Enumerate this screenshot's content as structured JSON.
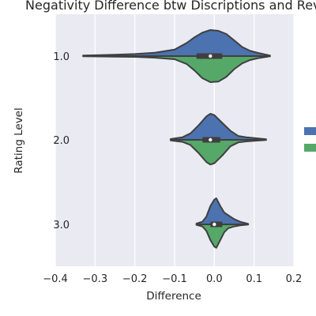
{
  "chart_data": {
    "type": "violin",
    "title": "Negativity Difference btw Discriptions and Revi",
    "xlabel": "Difference",
    "ylabel": "Rating Level",
    "xlim": [
      -0.4,
      0.2
    ],
    "xticks": [
      -0.4,
      -0.3,
      -0.2,
      -0.1,
      0.0,
      0.1,
      0.2
    ],
    "xtick_labels": [
      "−0.4",
      "−0.3",
      "−0.2",
      "−0.1",
      "0.0",
      "0.1",
      "0.2"
    ],
    "categories": [
      "1.0",
      "2.0",
      "3.0"
    ],
    "grid": true,
    "legend_placement": "right (partially cut off)",
    "split": true,
    "colors": {
      "background": "#eaeaf2",
      "grid": "#ffffff",
      "top_half": "#4c72b0",
      "bottom_half": "#55a868",
      "outline": "#3f3f3f"
    },
    "violins": [
      {
        "category": "1.0",
        "extent": [
          -0.33,
          0.14
        ],
        "top_density": [
          [
            -0.33,
            0.02
          ],
          [
            -0.25,
            0.05
          ],
          [
            -0.2,
            0.08
          ],
          [
            -0.15,
            0.13
          ],
          [
            -0.1,
            0.25
          ],
          [
            -0.07,
            0.5
          ],
          [
            -0.05,
            0.72
          ],
          [
            -0.03,
            0.9
          ],
          [
            -0.01,
            1.0
          ],
          [
            0.01,
            0.97
          ],
          [
            0.03,
            0.85
          ],
          [
            0.05,
            0.6
          ],
          [
            0.07,
            0.35
          ],
          [
            0.09,
            0.2
          ],
          [
            0.11,
            0.12
          ],
          [
            0.14,
            0.02
          ]
        ],
        "bottom_density": [
          [
            -0.33,
            0.01
          ],
          [
            -0.25,
            0.02
          ],
          [
            -0.2,
            0.03
          ],
          [
            -0.15,
            0.06
          ],
          [
            -0.1,
            0.12
          ],
          [
            -0.07,
            0.3
          ],
          [
            -0.05,
            0.55
          ],
          [
            -0.03,
            0.85
          ],
          [
            -0.01,
            1.0
          ],
          [
            0.01,
            0.98
          ],
          [
            0.03,
            0.8
          ],
          [
            0.05,
            0.5
          ],
          [
            0.07,
            0.28
          ],
          [
            0.09,
            0.15
          ],
          [
            0.11,
            0.08
          ],
          [
            0.14,
            0.01
          ]
        ],
        "median": -0.01,
        "quartiles": [
          -0.045,
          0.02
        ]
      },
      {
        "category": "2.0",
        "extent": [
          -0.11,
          0.13
        ],
        "top_density": [
          [
            -0.11,
            0.03
          ],
          [
            -0.08,
            0.1
          ],
          [
            -0.06,
            0.25
          ],
          [
            -0.04,
            0.55
          ],
          [
            -0.02,
            0.9
          ],
          [
            -0.01,
            1.0
          ],
          [
            0.0,
            0.95
          ],
          [
            0.02,
            0.65
          ],
          [
            0.04,
            0.35
          ],
          [
            0.06,
            0.15
          ],
          [
            0.08,
            0.1
          ],
          [
            0.1,
            0.07
          ],
          [
            0.13,
            0.02
          ]
        ],
        "bottom_density": [
          [
            -0.11,
            0.02
          ],
          [
            -0.08,
            0.08
          ],
          [
            -0.06,
            0.2
          ],
          [
            -0.04,
            0.5
          ],
          [
            -0.02,
            0.85
          ],
          [
            -0.01,
            0.95
          ],
          [
            0.0,
            0.9
          ],
          [
            0.02,
            0.6
          ],
          [
            0.04,
            0.25
          ],
          [
            0.06,
            0.1
          ],
          [
            0.08,
            0.06
          ],
          [
            0.1,
            0.04
          ],
          [
            0.13,
            0.01
          ]
        ],
        "median": -0.01,
        "quartiles": [
          -0.03,
          0.015
        ]
      },
      {
        "category": "3.0",
        "extent": [
          -0.045,
          0.085
        ],
        "top_density": [
          [
            -0.045,
            0.03
          ],
          [
            -0.03,
            0.1
          ],
          [
            -0.02,
            0.3
          ],
          [
            -0.01,
            0.7
          ],
          [
            0.0,
            0.95
          ],
          [
            0.005,
            1.0
          ],
          [
            0.015,
            0.7
          ],
          [
            0.025,
            0.45
          ],
          [
            0.035,
            0.35
          ],
          [
            0.05,
            0.2
          ],
          [
            0.065,
            0.1
          ],
          [
            0.085,
            0.02
          ]
        ],
        "bottom_density": [
          [
            -0.045,
            0.02
          ],
          [
            -0.03,
            0.08
          ],
          [
            -0.02,
            0.25
          ],
          [
            -0.01,
            0.6
          ],
          [
            0.0,
            0.85
          ],
          [
            0.005,
            0.9
          ],
          [
            0.015,
            0.6
          ],
          [
            0.025,
            0.3
          ],
          [
            0.035,
            0.15
          ],
          [
            0.05,
            0.08
          ],
          [
            0.065,
            0.04
          ],
          [
            0.085,
            0.01
          ]
        ],
        "median": 0.0,
        "quartiles": [
          -0.01,
          0.02
        ]
      }
    ]
  }
}
